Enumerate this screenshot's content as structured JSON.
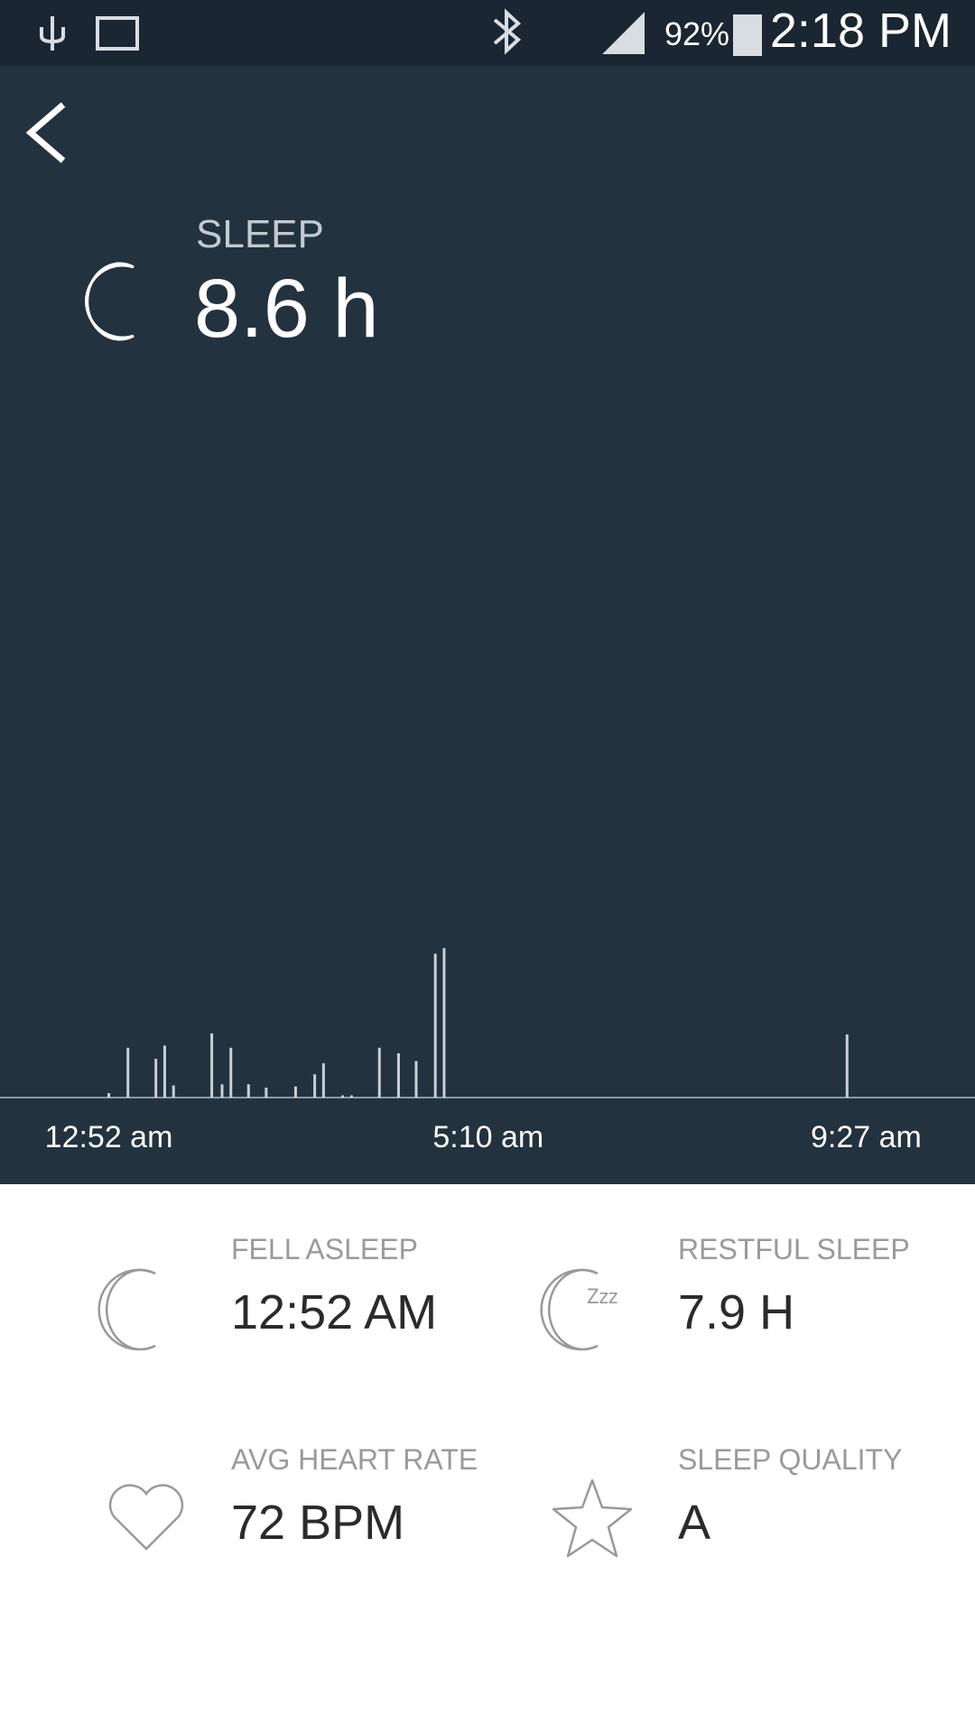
{
  "status_bar": {
    "battery": "92%",
    "time": "2:18 PM"
  },
  "header": {
    "label": "SLEEP",
    "value": "8.6 h"
  },
  "chart_data": {
    "type": "bar",
    "x": [
      0,
      13,
      32,
      38,
      44,
      70,
      77,
      83,
      95,
      107,
      127,
      140,
      146,
      159,
      165,
      184,
      197,
      209,
      222,
      228,
      502
    ],
    "values": [
      4,
      45,
      35,
      47,
      11,
      58,
      12,
      45,
      12,
      9,
      10,
      21,
      31,
      2,
      2,
      45,
      40,
      33,
      130,
      135,
      57
    ],
    "xlim": [
      -74,
      589
    ],
    "xticks": [
      {
        "value": 0,
        "label": "12:52 am"
      },
      {
        "value": 258,
        "label": "5:10 am"
      },
      {
        "value": 515,
        "label": "9:27 am"
      }
    ],
    "ylim": [
      0,
      150
    ],
    "color": "#c9d0d6"
  },
  "stats": [
    {
      "label": "FELL ASLEEP",
      "value": "12:52 AM"
    },
    {
      "label": "RESTFUL SLEEP",
      "value": "7.9 H"
    },
    {
      "label": "AVG HEART RATE",
      "value": "72 BPM"
    },
    {
      "label": "SLEEP QUALITY",
      "value": "A"
    }
  ]
}
